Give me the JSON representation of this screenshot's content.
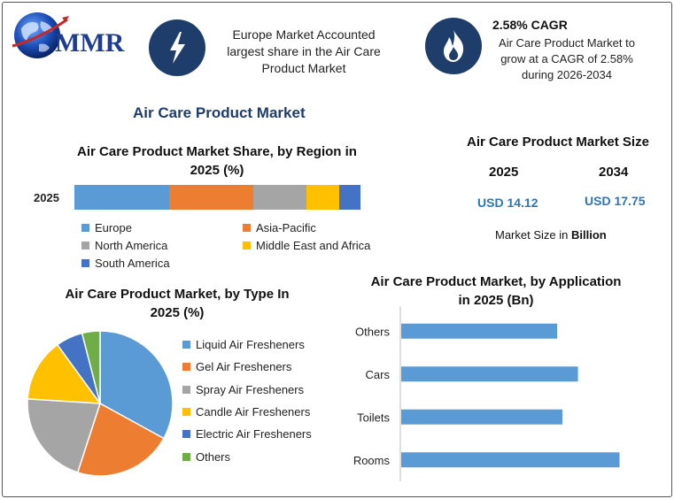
{
  "header": {
    "logo_text": "MMR",
    "info1": {
      "icon": "lightning-icon",
      "line1": "Europe Market Accounted",
      "line2": "largest share in the Air Care",
      "line3": "Product Market"
    },
    "info2": {
      "icon": "flame-icon",
      "title": "2.58% CAGR",
      "line1": "Air Care Product Market to",
      "line2": "grow at a CAGR of 2.58%",
      "line3": "during 2026-2034"
    }
  },
  "main_title": "Air Care Product Market",
  "market_size": {
    "title": "Air Care Product Market Size",
    "year1": "2025",
    "year2": "2034",
    "value1": "USD 14.12",
    "value2": "USD 17.75",
    "note_prefix": "Market Size in ",
    "note_bold": "Billion"
  },
  "colors": {
    "blue": "#5b9bd5",
    "orange": "#ed7d31",
    "gray": "#a5a5a5",
    "yellow": "#ffc000",
    "dark_blue": "#4472c4",
    "green": "#70ad47",
    "navy": "#1f3d6b"
  },
  "chart_data": [
    {
      "id": "region",
      "type": "bar",
      "stacked": true,
      "orientation": "horizontal",
      "title_line1": "Air Care Product Market Share, by Region in",
      "title_line2": "2025 (%)",
      "categories": [
        "2025"
      ],
      "series": [
        {
          "name": "Europe",
          "values": [
            33
          ],
          "color": "#5b9bd5"
        },
        {
          "name": "Asia-Pacific",
          "values": [
            29.5
          ],
          "color": "#ed7d31"
        },
        {
          "name": "North America",
          "values": [
            18.5
          ],
          "color": "#a5a5a5"
        },
        {
          "name": "Middle East and Africa",
          "values": [
            11.5
          ],
          "color": "#ffc000"
        },
        {
          "name": "South America",
          "values": [
            7.5
          ],
          "color": "#4472c4"
        }
      ],
      "legend_position": "bottom"
    },
    {
      "id": "type",
      "type": "pie",
      "title_line1": "Air Care Product Market, by Type In",
      "title_line2": "2025 (%)",
      "slices": [
        {
          "name": "Liquid Air Fresheners",
          "value": 33,
          "color": "#5b9bd5"
        },
        {
          "name": "Gel Air Fresheners",
          "value": 22,
          "color": "#ed7d31"
        },
        {
          "name": "Spray Air Fresheners",
          "value": 21,
          "color": "#a5a5a5"
        },
        {
          "name": "Candle Air Fresheners",
          "value": 14,
          "color": "#ffc000"
        },
        {
          "name": "Electric Air Fresheners",
          "value": 6,
          "color": "#4472c4"
        },
        {
          "name": "Others",
          "value": 4,
          "color": "#70ad47"
        }
      ],
      "legend_position": "right"
    },
    {
      "id": "application",
      "type": "bar",
      "orientation": "horizontal",
      "title_line1": "Air Care Product Market, by Application",
      "title_line2": "in 2025 (Bn)",
      "categories": [
        "Others",
        "Cars",
        "Toilets",
        "Rooms"
      ],
      "values": [
        3.0,
        3.4,
        3.1,
        4.2
      ],
      "xlim": [
        0,
        4.6
      ],
      "color": "#5b9bd5",
      "grid": false
    }
  ]
}
